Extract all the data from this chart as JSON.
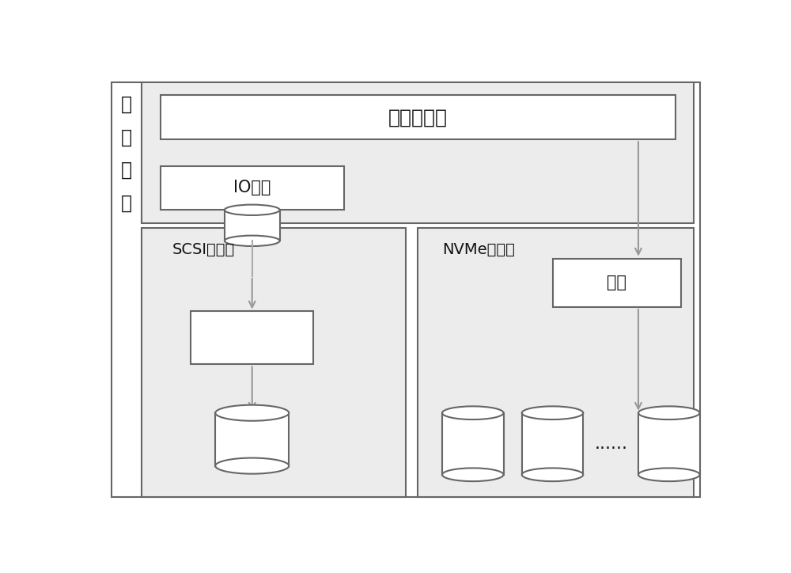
{
  "fig_bg": "#ffffff",
  "panel_bg": "#ececec",
  "box_fc": "#ffffff",
  "box_ec": "#666666",
  "text_color": "#111111",
  "arrow_color": "#999999",
  "line_color": "#aaaaaa",
  "top_layer_text": "上层接口层",
  "io_text": "IO调度",
  "scsi_text": "SCSI协议栈",
  "nvme_text": "NVMe协议栈",
  "queue_text": "队列",
  "block_label": [
    "块",
    "设",
    "备",
    "层"
  ],
  "dots_text": "......",
  "font_size_large": 18,
  "font_size_med": 15,
  "font_size_small": 14,
  "font_size_label": 17
}
